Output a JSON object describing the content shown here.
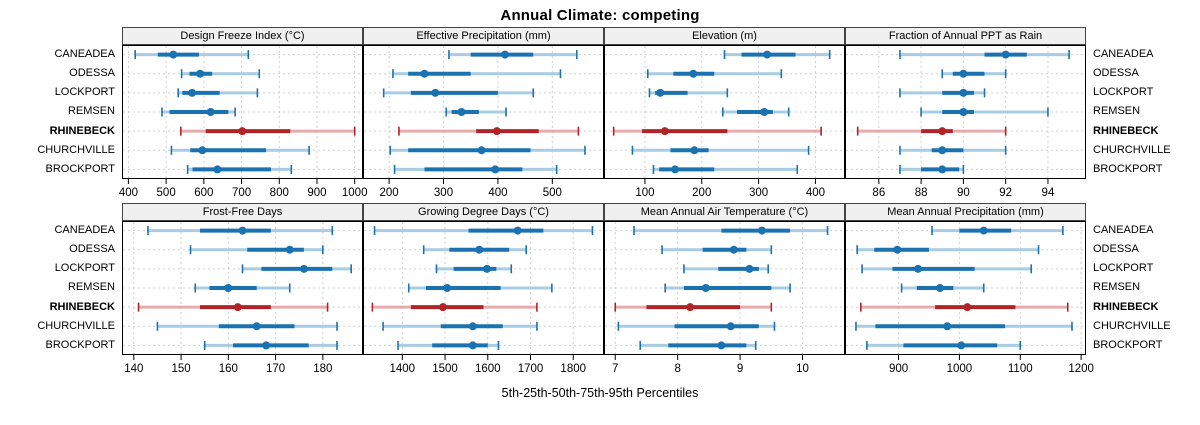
{
  "title": "Annual Climate: competing",
  "caption": "5th-25th-50th-75th-95th Percentiles",
  "stations": [
    "CANEADEA",
    "ODESSA",
    "LOCKPORT",
    "REMSEN",
    "RHINEBECK",
    "CHURCHVILLE",
    "BROCKPORT"
  ],
  "highlight_station": "RHINEBECK",
  "colors": {
    "blue": "#1A72B0",
    "blue_light": "#A8CCE4",
    "red": "#B02428",
    "red_light": "#E7ABAB",
    "grid": "#CFCFCF",
    "strip_bg": "#F0F0F0",
    "panel_border": "#000000"
  },
  "chart_data": {
    "type": "dotplot-intervals",
    "percentiles": [
      "5th",
      "25th",
      "50th",
      "75th",
      "95th"
    ],
    "layout": "2 rows x 4 columns, station labels on both sides, RHINEBECK highlighted red/bold",
    "panels": [
      {
        "title": "Design Freeze Index (°C)",
        "ticks": [
          400,
          500,
          600,
          700,
          800,
          900,
          1000
        ],
        "xlim": [
          383,
          1022
        ],
        "values": [
          [
            418,
            478,
            519,
            587,
            718
          ],
          [
            541,
            562,
            590,
            622,
            747
          ],
          [
            532,
            543,
            569,
            642,
            742
          ],
          [
            489,
            509,
            618,
            665,
            683
          ],
          [
            539,
            605,
            702,
            829,
            1000
          ],
          [
            514,
            564,
            596,
            765,
            879
          ],
          [
            557,
            570,
            636,
            778,
            832
          ]
        ]
      },
      {
        "title": "Effective Precipitation (mm)",
        "ticks": [
          200,
          300,
          400,
          500
        ],
        "xlim": [
          152,
          595
        ],
        "values": [
          [
            310,
            350,
            413,
            465,
            545
          ],
          [
            207,
            235,
            265,
            350,
            515
          ],
          [
            190,
            240,
            285,
            400,
            465
          ],
          [
            305,
            315,
            333,
            365,
            415
          ],
          [
            218,
            360,
            398,
            475,
            548
          ],
          [
            202,
            235,
            370,
            460,
            560
          ],
          [
            210,
            265,
            395,
            445,
            508
          ]
        ]
      },
      {
        "title": "Elevation (m)",
        "ticks": [
          100,
          200,
          300,
          400
        ],
        "xlim": [
          28,
          452
        ],
        "values": [
          [
            240,
            270,
            315,
            365,
            425
          ],
          [
            105,
            150,
            185,
            222,
            340
          ],
          [
            108,
            118,
            127,
            175,
            245
          ],
          [
            237,
            262,
            310,
            325,
            353
          ],
          [
            45,
            95,
            135,
            245,
            410
          ],
          [
            78,
            145,
            187,
            212,
            388
          ],
          [
            115,
            125,
            153,
            222,
            368
          ]
        ]
      },
      {
        "title": "Fraction of Annual PPT as Rain",
        "ticks": [
          86,
          88,
          90,
          92,
          94
        ],
        "xlim": [
          84.4,
          95.8
        ],
        "values": [
          [
            87,
            91,
            92,
            93,
            95
          ],
          [
            89,
            89.5,
            90,
            91,
            92
          ],
          [
            87,
            89,
            90,
            90.5,
            91
          ],
          [
            88,
            89,
            90,
            90.5,
            94
          ],
          [
            85,
            88,
            89,
            89.5,
            92
          ],
          [
            87,
            88.5,
            89,
            90,
            92
          ],
          [
            87,
            88,
            89,
            89.8,
            90
          ]
        ]
      },
      {
        "title": "Frost-Free Days",
        "ticks": [
          140,
          150,
          160,
          170,
          180
        ],
        "xlim": [
          137.5,
          188.5
        ],
        "values": [
          [
            143,
            154,
            163,
            169,
            182
          ],
          [
            152,
            164,
            173,
            176,
            180
          ],
          [
            163,
            167,
            176,
            182,
            186
          ],
          [
            153,
            156,
            160,
            166,
            173
          ],
          [
            141,
            154,
            162,
            169,
            181
          ],
          [
            145,
            158,
            166,
            174,
            183
          ],
          [
            155,
            161,
            168,
            177,
            183
          ]
        ]
      },
      {
        "title": "Growing Degree Days (°C)",
        "ticks": [
          1400,
          1500,
          1600,
          1700,
          1800
        ],
        "xlim": [
          1308,
          1872
        ],
        "values": [
          [
            1335,
            1555,
            1670,
            1730,
            1845
          ],
          [
            1450,
            1510,
            1580,
            1650,
            1690
          ],
          [
            1480,
            1520,
            1598,
            1620,
            1655
          ],
          [
            1415,
            1455,
            1505,
            1630,
            1750
          ],
          [
            1330,
            1420,
            1495,
            1590,
            1715
          ],
          [
            1355,
            1490,
            1565,
            1635,
            1715
          ],
          [
            1390,
            1470,
            1565,
            1600,
            1625
          ]
        ]
      },
      {
        "title": "Mean Annual Air Temperature (°C)",
        "ticks": [
          7,
          8,
          9,
          10
        ],
        "xlim": [
          6.82,
          10.68
        ],
        "values": [
          [
            7.3,
            8.7,
            9.35,
            9.8,
            10.4
          ],
          [
            7.75,
            8.4,
            8.9,
            9.1,
            9.5
          ],
          [
            8.1,
            8.65,
            9.15,
            9.3,
            9.45
          ],
          [
            7.8,
            8.1,
            8.45,
            9.5,
            9.8
          ],
          [
            7.0,
            7.5,
            8.2,
            9.0,
            9.5
          ],
          [
            7.05,
            7.95,
            8.85,
            9.3,
            9.55
          ],
          [
            7.4,
            7.85,
            8.7,
            9.1,
            9.25
          ]
        ]
      },
      {
        "title": "Mean Annual Precipitation (mm)",
        "ticks": [
          900,
          1000,
          1100,
          1200
        ],
        "xlim": [
          812,
          1208
        ],
        "values": [
          [
            955,
            1000,
            1040,
            1085,
            1170
          ],
          [
            832,
            860,
            898,
            950,
            1130
          ],
          [
            840,
            890,
            932,
            1025,
            1118
          ],
          [
            905,
            930,
            968,
            990,
            1040
          ],
          [
            838,
            960,
            1013,
            1092,
            1178
          ],
          [
            830,
            862,
            980,
            1075,
            1185
          ],
          [
            848,
            908,
            1003,
            1062,
            1100
          ]
        ]
      }
    ]
  }
}
